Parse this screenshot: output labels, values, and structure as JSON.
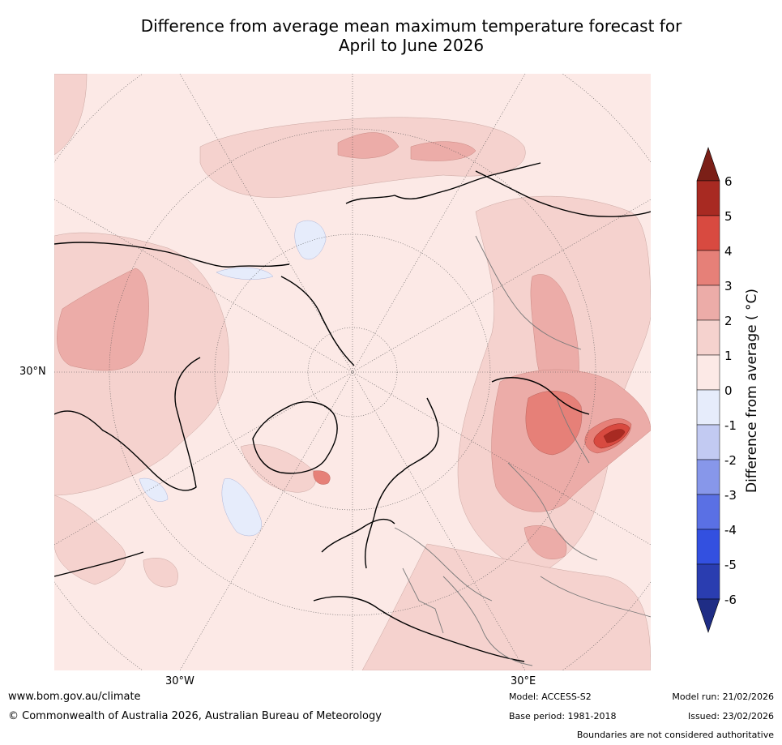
{
  "title_line1": "Difference from average mean maximum temperature forecast for",
  "title_line2": "April to June 2026",
  "map": {
    "projection": "north-polar-stereographic",
    "lat_label": "30°N",
    "lon_labels": [
      "30°W",
      "30°E"
    ],
    "colors": {
      "ocean_base": "#fce9e6",
      "anom_1_2": "#f5d2ce",
      "anom_2_3": "#ecaca8",
      "anom_3_4": "#e68078",
      "anom_4_5": "#d84a40",
      "anom_5_6": "#a82a22",
      "anom_neg_0_1": "#e6ecfb",
      "coast": "#000000",
      "borders": "#7a7a7a"
    }
  },
  "colorbar": {
    "title": "Difference from average ( °C)",
    "ticks": [
      "6",
      "5",
      "4",
      "3",
      "2",
      "1",
      "0",
      "-1",
      "-2",
      "-3",
      "-4",
      "-5",
      "-6"
    ],
    "colors": [
      "#7b1f17",
      "#a82a22",
      "#d84a40",
      "#e68078",
      "#ecaca8",
      "#f5d2ce",
      "#fce9e6",
      "#e6ecfb",
      "#c2caf2",
      "#8797ea",
      "#5a70e4",
      "#3350e0",
      "#2a3db0",
      "#1f2d85"
    ]
  },
  "footer": {
    "url": "www.bom.gov.au/climate",
    "copyright": "© Commonwealth of Australia 2026, Australian Bureau of Meteorology",
    "model": "Model: ACCESS-S2",
    "base_period": "Base period: 1981-2018",
    "model_run": "Model run: 21/02/2026",
    "issued": "Issued: 23/02/2026",
    "disclaimer": "Boundaries are not considered authoritative"
  }
}
